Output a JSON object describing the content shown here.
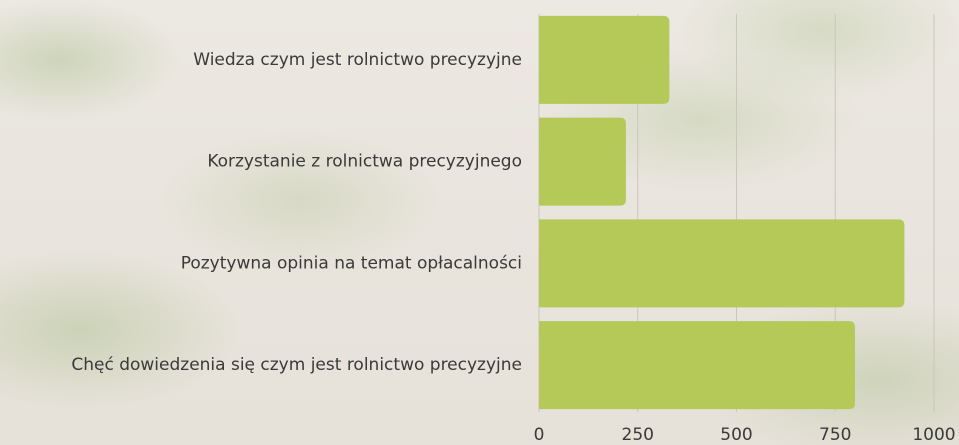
{
  "chart_data": {
    "type": "barh",
    "categories": [
      "Wiedza czym jest rolnictwo precyzyjne",
      "Korzystanie z rolnictwa precyzyjnego",
      "Pozytywna opinia na temat opłacalności",
      "Chęć dowiedzenia się czym jest rolnictwo precyzyjne"
    ],
    "values": [
      330,
      220,
      925,
      800
    ],
    "color": "#b4c957",
    "xlim": [
      0,
      1000
    ],
    "xticks": [
      0,
      250,
      500,
      750,
      1000
    ],
    "grid": true
  }
}
